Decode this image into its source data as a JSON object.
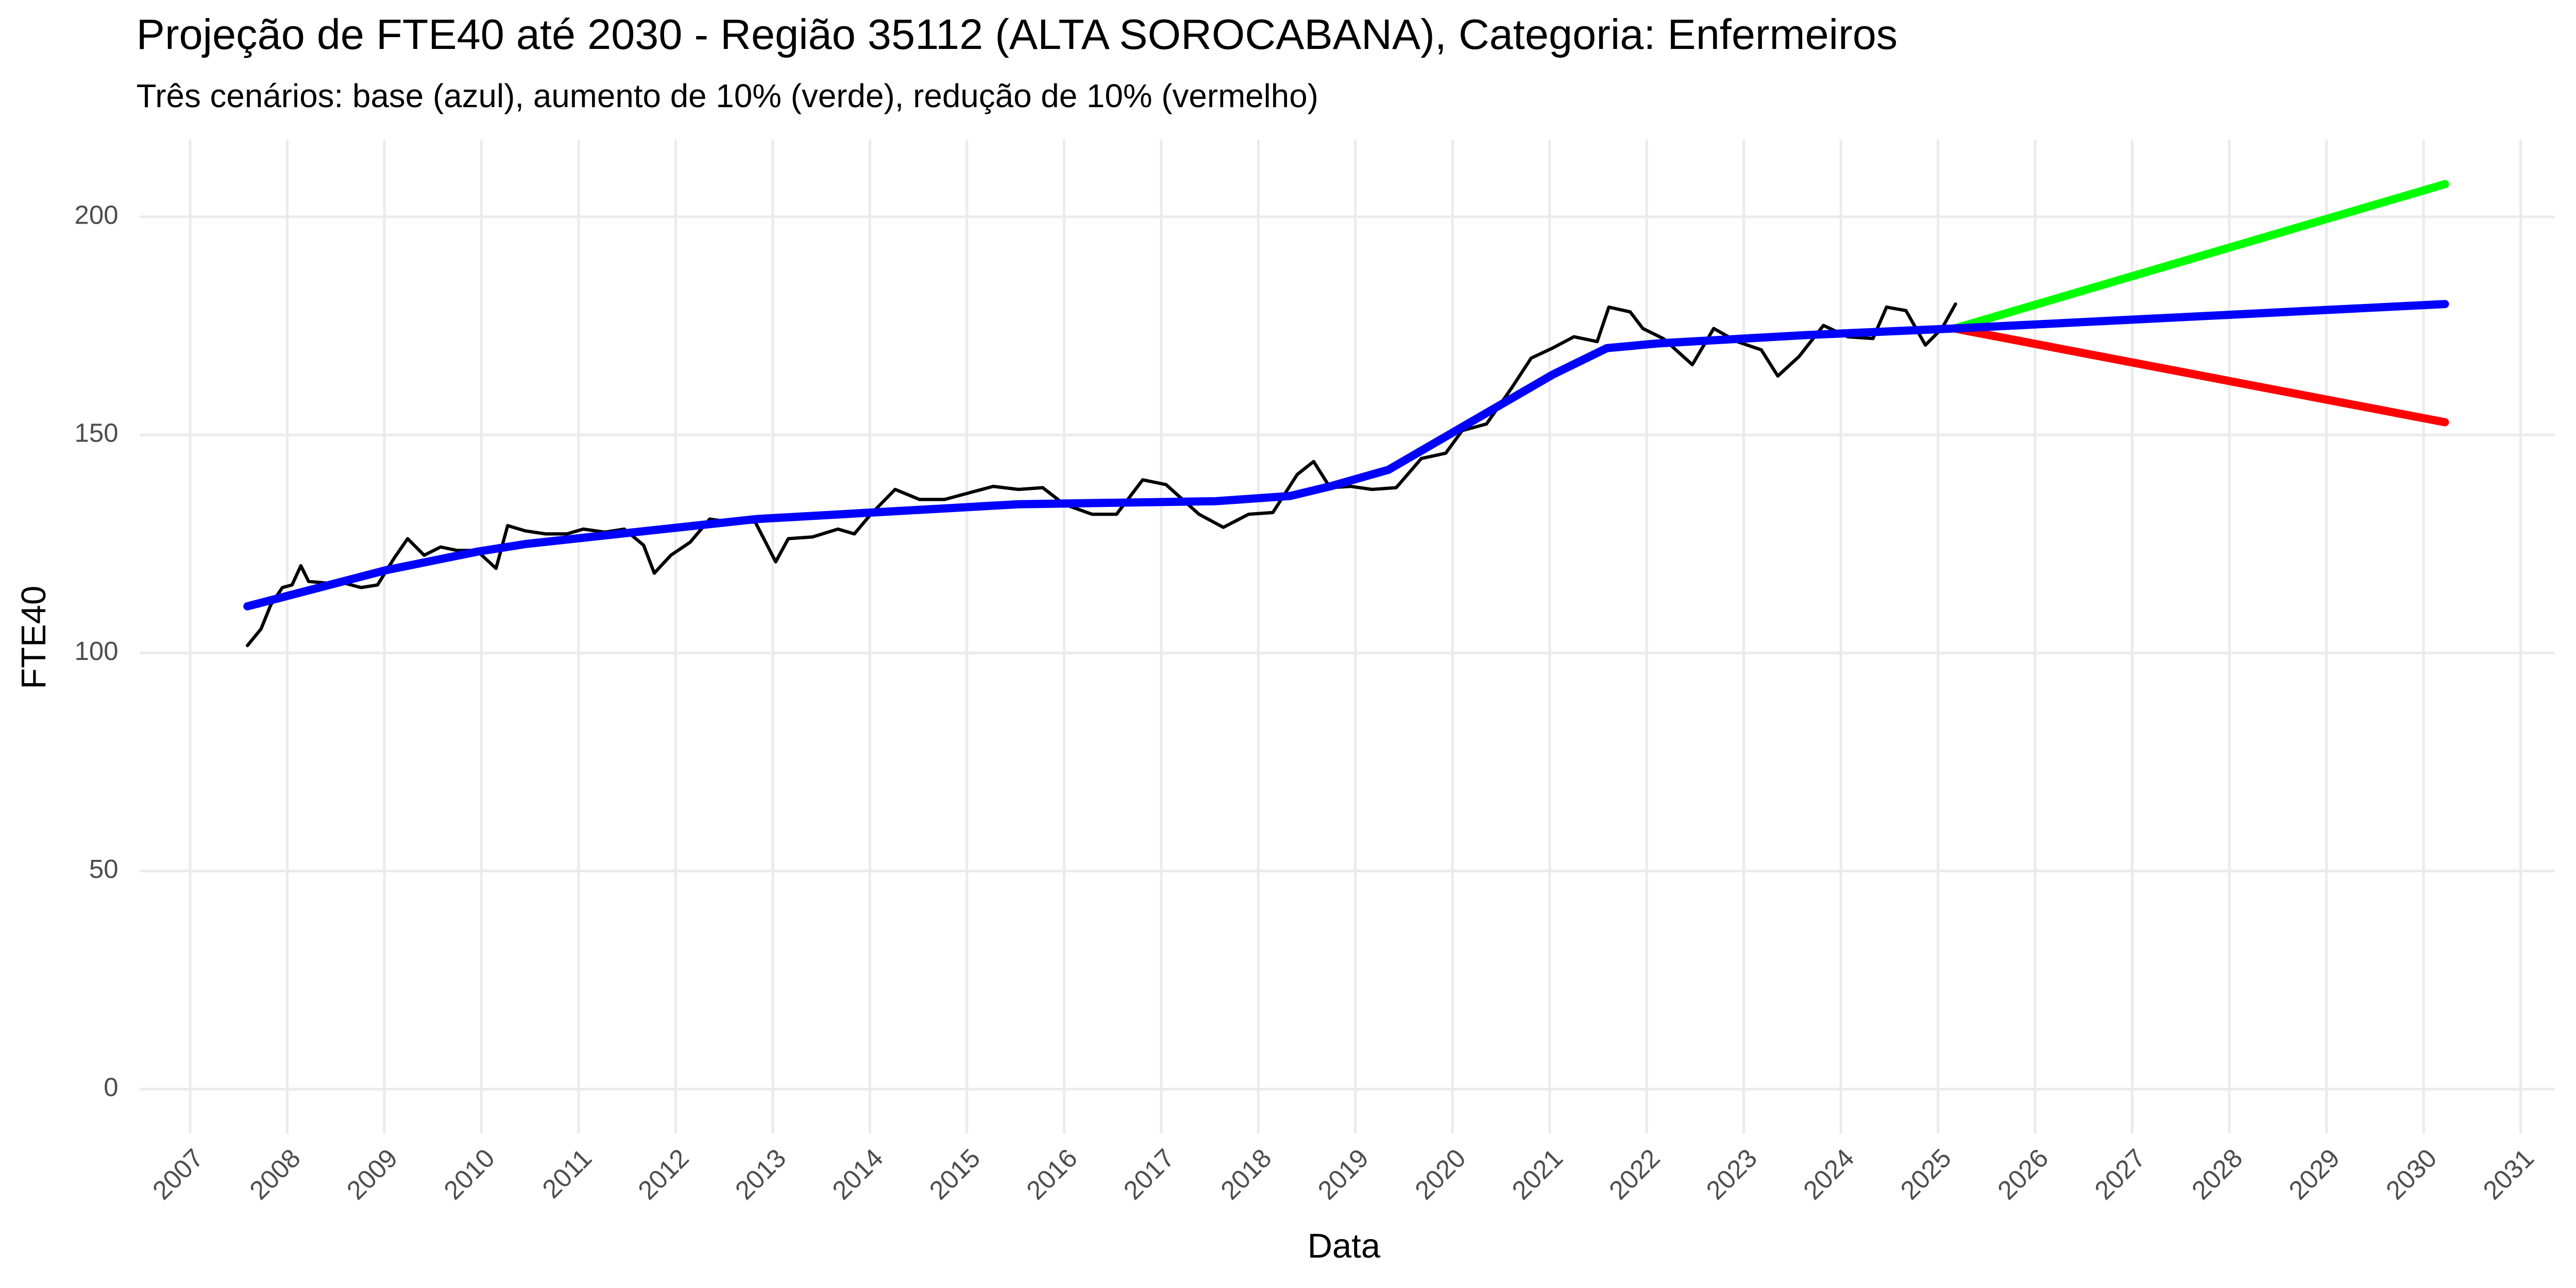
{
  "chart_data": {
    "type": "line",
    "title": "Projeção de FTE40 até 2030 - Região 35112 (ALTA SOROCABANA), Categoria: Enfermeiros",
    "subtitle": "Três cenários: base (azul), aumento de 10% (verde), redução de 10% (vermelho)",
    "x_label": "Data",
    "y_label": "FTE40",
    "xlim": [
      2006.48,
      2031.35
    ],
    "xticks": [
      2007,
      2008,
      2009,
      2010,
      2011,
      2012,
      2013,
      2014,
      2015,
      2016,
      2017,
      2018,
      2019,
      2020,
      2021,
      2022,
      2023,
      2024,
      2025,
      2026,
      2027,
      2028,
      2029,
      2030,
      2031
    ],
    "ylim": [
      -10.2,
      217.7
    ],
    "yticks": [
      0,
      50,
      100,
      150,
      200
    ],
    "grid": true,
    "series": [
      {
        "color": "#000000",
        "width": 2,
        "x": [
          2007.59,
          2007.73,
          2007.83,
          2007.95,
          2008.05,
          2008.14,
          2008.22,
          2008.42,
          2008.59,
          2008.76,
          2008.93,
          2009.1,
          2009.24,
          2009.41,
          2009.58,
          2009.75,
          2009.95,
          2010.15,
          2010.27,
          2010.45,
          2010.66,
          2010.88,
          2011.05,
          2011.27,
          2011.47,
          2011.67,
          2011.78,
          2011.95,
          2012.15,
          2012.35,
          2012.57,
          2012.82,
          2013.03,
          2013.16,
          2013.41,
          2013.67,
          2013.84,
          2014.01,
          2014.26,
          2014.51,
          2014.77,
          2015.02,
          2015.27,
          2015.53,
          2015.78,
          2016.0,
          2016.29,
          2016.54,
          2016.81,
          2017.05,
          2017.22,
          2017.39,
          2017.64,
          2017.9,
          2018.15,
          2018.4,
          2018.57,
          2018.74,
          2018.95,
          2019.17,
          2019.42,
          2019.68,
          2019.93,
          2020.1,
          2020.35,
          2020.61,
          2020.81,
          2021.03,
          2021.25,
          2021.49,
          2021.61,
          2021.83,
          2021.96,
          2022.17,
          2022.47,
          2022.69,
          2022.93,
          2023.18,
          2023.35,
          2023.57,
          2023.82,
          2024.07,
          2024.33,
          2024.47,
          2024.67,
          2024.87,
          2025.04,
          2025.18
        ],
        "values": [
          101.7,
          105.5,
          111,
          115,
          115.6,
          120,
          116.4,
          116,
          116,
          115,
          115.6,
          121.7,
          126.2,
          122.4,
          124.3,
          123.5,
          123.5,
          119.4,
          129.2,
          128,
          127.3,
          127.3,
          128.4,
          127.7,
          128.4,
          124.7,
          118.3,
          122.4,
          125.4,
          130.7,
          130,
          130,
          120.9,
          126.2,
          126.6,
          128.4,
          127.3,
          131.8,
          137.5,
          135.2,
          135.2,
          136.7,
          138.2,
          137.5,
          137.9,
          134.1,
          131.8,
          131.8,
          139.7,
          138.6,
          135.2,
          131.8,
          128.8,
          131.8,
          132.2,
          140.9,
          143.9,
          137.9,
          138.2,
          137.5,
          137.9,
          144.6,
          145.8,
          151,
          152.5,
          160.8,
          167.6,
          169.9,
          172.5,
          171.4,
          179.3,
          178.2,
          174.4,
          172.1,
          166.1,
          174.4,
          171.4,
          169.5,
          163.5,
          168,
          175.1,
          172.5,
          172.1,
          179.3,
          178.5,
          170.6,
          174.4,
          180
        ]
      },
      {
        "color": "#00ff00",
        "width": 5,
        "x": [
          2025.17,
          2030.22
        ],
        "values": [
          174.4,
          207.5
        ]
      },
      {
        "color": "#ff0000",
        "width": 5,
        "x": [
          2025.17,
          2030.22
        ],
        "values": [
          174.4,
          152.9
        ]
      },
      {
        "color": "#0000ff",
        "width": 5,
        "x": [
          2007.59,
          2009.02,
          2009.95,
          2010.46,
          2012.83,
          2015.53,
          2017.56,
          2018.33,
          2018.74,
          2019.34,
          2020.27,
          2021.03,
          2021.59,
          2022.13,
          2023.65,
          2025.17,
          2030.22
        ],
        "values": [
          110.7,
          119,
          123.2,
          125,
          130.7,
          134.1,
          134.8,
          136,
          138.2,
          142,
          154,
          163.8,
          169.9,
          171,
          172.9,
          174.4,
          180
        ]
      }
    ]
  }
}
